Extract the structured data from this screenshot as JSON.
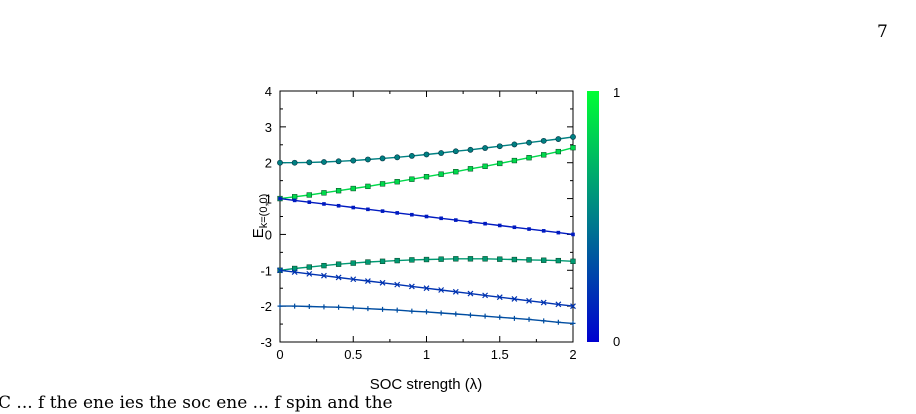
{
  "page_number": "7",
  "caption_fragment": "C    ...    f the   ene    ies   the  soc    ene    ...    f  spin        and   the",
  "chart_data": {
    "type": "line",
    "title": "",
    "xlabel": "SOC strength (λ)",
    "ylabel_main": "E",
    "ylabel_sub": "k=(0,0)",
    "xlim": [
      0,
      2
    ],
    "ylim": [
      -3,
      4
    ],
    "x_ticks": [
      "0",
      "0.5",
      "1",
      "1.5",
      "2"
    ],
    "y_ticks": [
      "-3",
      "-2",
      "-1",
      "0",
      "1",
      "2",
      "3",
      "4"
    ],
    "grid": false,
    "colorbar": {
      "min_label": "0",
      "max_label": "1",
      "color_low": "#0000d0",
      "color_high": "#00ff33"
    },
    "x": [
      0,
      0.1,
      0.2,
      0.3,
      0.4,
      0.5,
      0.6,
      0.7,
      0.8,
      0.9,
      1.0,
      1.1,
      1.2,
      1.3,
      1.4,
      1.5,
      1.6,
      1.7,
      1.8,
      1.9,
      2.0
    ],
    "series": [
      {
        "marker": "circle",
        "color_value": 0.5,
        "values": [
          2.0,
          2.0,
          2.01,
          2.02,
          2.04,
          2.06,
          2.09,
          2.12,
          2.15,
          2.19,
          2.23,
          2.27,
          2.32,
          2.36,
          2.41,
          2.46,
          2.51,
          2.56,
          2.61,
          2.66,
          2.72
        ]
      },
      {
        "marker": "square",
        "color_value": 0.85,
        "values": [
          1.0,
          1.05,
          1.1,
          1.16,
          1.22,
          1.28,
          1.34,
          1.41,
          1.47,
          1.54,
          1.61,
          1.68,
          1.75,
          1.83,
          1.9,
          1.98,
          2.06,
          2.14,
          2.22,
          2.31,
          2.42
        ]
      },
      {
        "marker": "square-small",
        "color_value": 0.1,
        "values": [
          1.0,
          0.95,
          0.9,
          0.85,
          0.8,
          0.75,
          0.7,
          0.65,
          0.6,
          0.55,
          0.5,
          0.45,
          0.4,
          0.35,
          0.3,
          0.25,
          0.2,
          0.15,
          0.1,
          0.05,
          0.0
        ]
      },
      {
        "marker": "square",
        "color_value": 0.6,
        "values": [
          -1.0,
          -0.95,
          -0.91,
          -0.87,
          -0.83,
          -0.8,
          -0.77,
          -0.75,
          -0.73,
          -0.71,
          -0.7,
          -0.69,
          -0.68,
          -0.68,
          -0.68,
          -0.69,
          -0.7,
          -0.71,
          -0.72,
          -0.73,
          -0.75
        ]
      },
      {
        "marker": "x",
        "color_value": 0.2,
        "values": [
          -1.0,
          -1.05,
          -1.1,
          -1.15,
          -1.2,
          -1.25,
          -1.3,
          -1.35,
          -1.4,
          -1.45,
          -1.5,
          -1.55,
          -1.6,
          -1.65,
          -1.7,
          -1.75,
          -1.8,
          -1.85,
          -1.9,
          -1.95,
          -2.0
        ]
      },
      {
        "marker": "plus",
        "color_value": 0.3,
        "values": [
          -2.0,
          -2.0,
          -2.01,
          -2.02,
          -2.03,
          -2.05,
          -2.07,
          -2.09,
          -2.11,
          -2.14,
          -2.16,
          -2.19,
          -2.22,
          -2.25,
          -2.28,
          -2.31,
          -2.34,
          -2.37,
          -2.41,
          -2.45,
          -2.48
        ]
      }
    ]
  }
}
